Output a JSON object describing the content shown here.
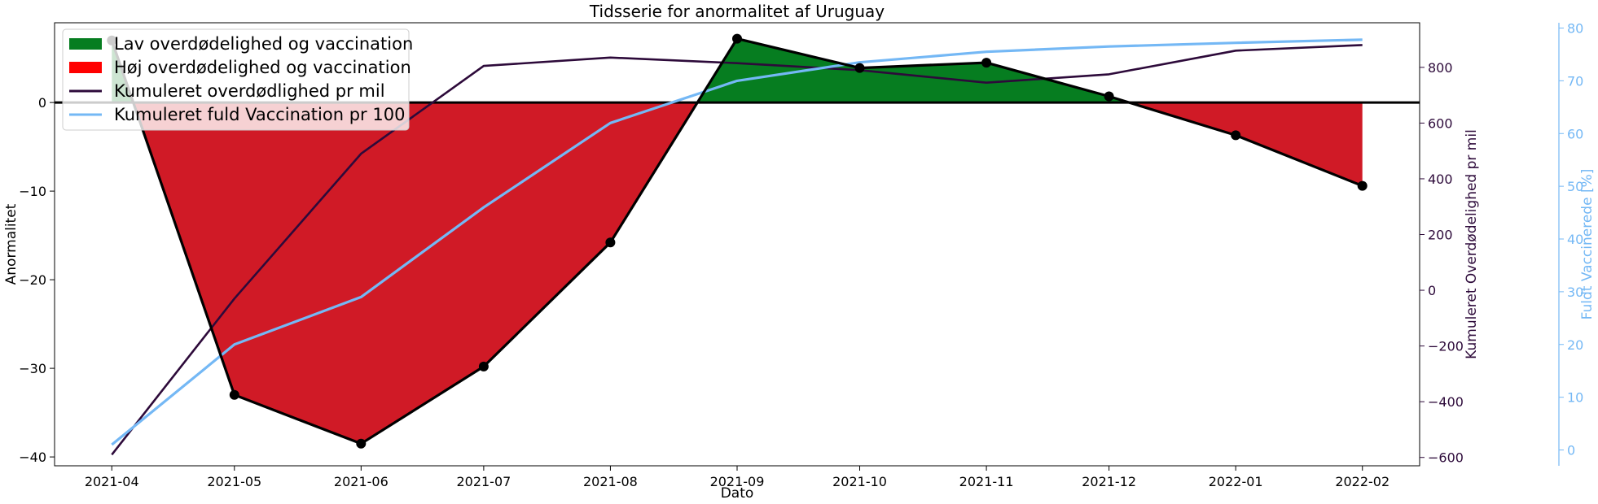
{
  "chart_data": {
    "type": "line",
    "title": "Tidsserie for anormalitet af Uruguay",
    "xlabel": "Dato",
    "x_ticks": [
      "2021-04",
      "2021-05",
      "2021-06",
      "2021-07",
      "2021-08",
      "2021-09",
      "2021-10",
      "2021-11",
      "2021-12",
      "2022-01",
      "2022-02"
    ],
    "x": [
      "2021-03-31",
      "2021-04-30",
      "2021-05-31",
      "2021-06-30",
      "2021-07-31",
      "2021-08-31",
      "2021-09-30",
      "2021-10-31",
      "2021-11-30",
      "2021-12-31",
      "2022-01-31"
    ],
    "axes": {
      "left": {
        "label": "Anormalitet",
        "ylim": [
          -41,
          9
        ],
        "ticks": [
          -40,
          -30,
          -20,
          -10,
          0
        ]
      },
      "right1": {
        "label": "Kumuleret Overdødelighed pr mil",
        "ylim": [
          -630,
          960
        ],
        "ticks": [
          -600,
          -400,
          -200,
          0,
          200,
          400,
          600,
          800
        ],
        "color": "#2d0a3a"
      },
      "right2": {
        "label": "Fuldt Vaccinerede [%]",
        "ylim": [
          -3,
          81
        ],
        "ticks": [
          0,
          10,
          20,
          30,
          40,
          50,
          60,
          70,
          80
        ],
        "color": "#74b8f5"
      }
    },
    "series": [
      {
        "name": "",
        "axis": "left",
        "color": "#000000",
        "values": [
          7.0,
          -33.0,
          -38.5,
          -29.8,
          -15.8,
          7.2,
          3.9,
          4.5,
          0.7,
          -3.7,
          -9.4
        ]
      },
      {
        "name": "Kumuleret overdødlighed pr mil",
        "axis": "right1",
        "color": "#2d0a3a",
        "values": [
          -590,
          -30,
          490,
          805,
          835,
          815,
          790,
          745,
          775,
          860,
          880
        ]
      },
      {
        "name": "Kumuleret fuld Vaccination pr 100",
        "axis": "right2",
        "color": "#74b8f5",
        "values": [
          1,
          20,
          29,
          46,
          62,
          70,
          73.5,
          75.5,
          76.5,
          77.2,
          77.8
        ]
      }
    ],
    "fills": [
      {
        "name": "Lav overdødelighed og vaccination",
        "color": "#067d20"
      },
      {
        "name": "Høj overdødelighed og vaccination",
        "color": "#d01a26"
      }
    ],
    "legend": {
      "position": "top-left",
      "entries": [
        {
          "label": "Lav overdødelighed og vaccination",
          "kind": "patch",
          "color": "#067d20"
        },
        {
          "label": "Høj overdødelighed og vaccination",
          "kind": "patch",
          "color": "#ff0000"
        },
        {
          "label": "Kumuleret overdødlighed pr mil",
          "kind": "line",
          "color": "#2d0a3a"
        },
        {
          "label": "Kumuleret fuld Vaccination pr 100",
          "kind": "line",
          "color": "#74b8f5"
        }
      ]
    },
    "grid": false
  }
}
